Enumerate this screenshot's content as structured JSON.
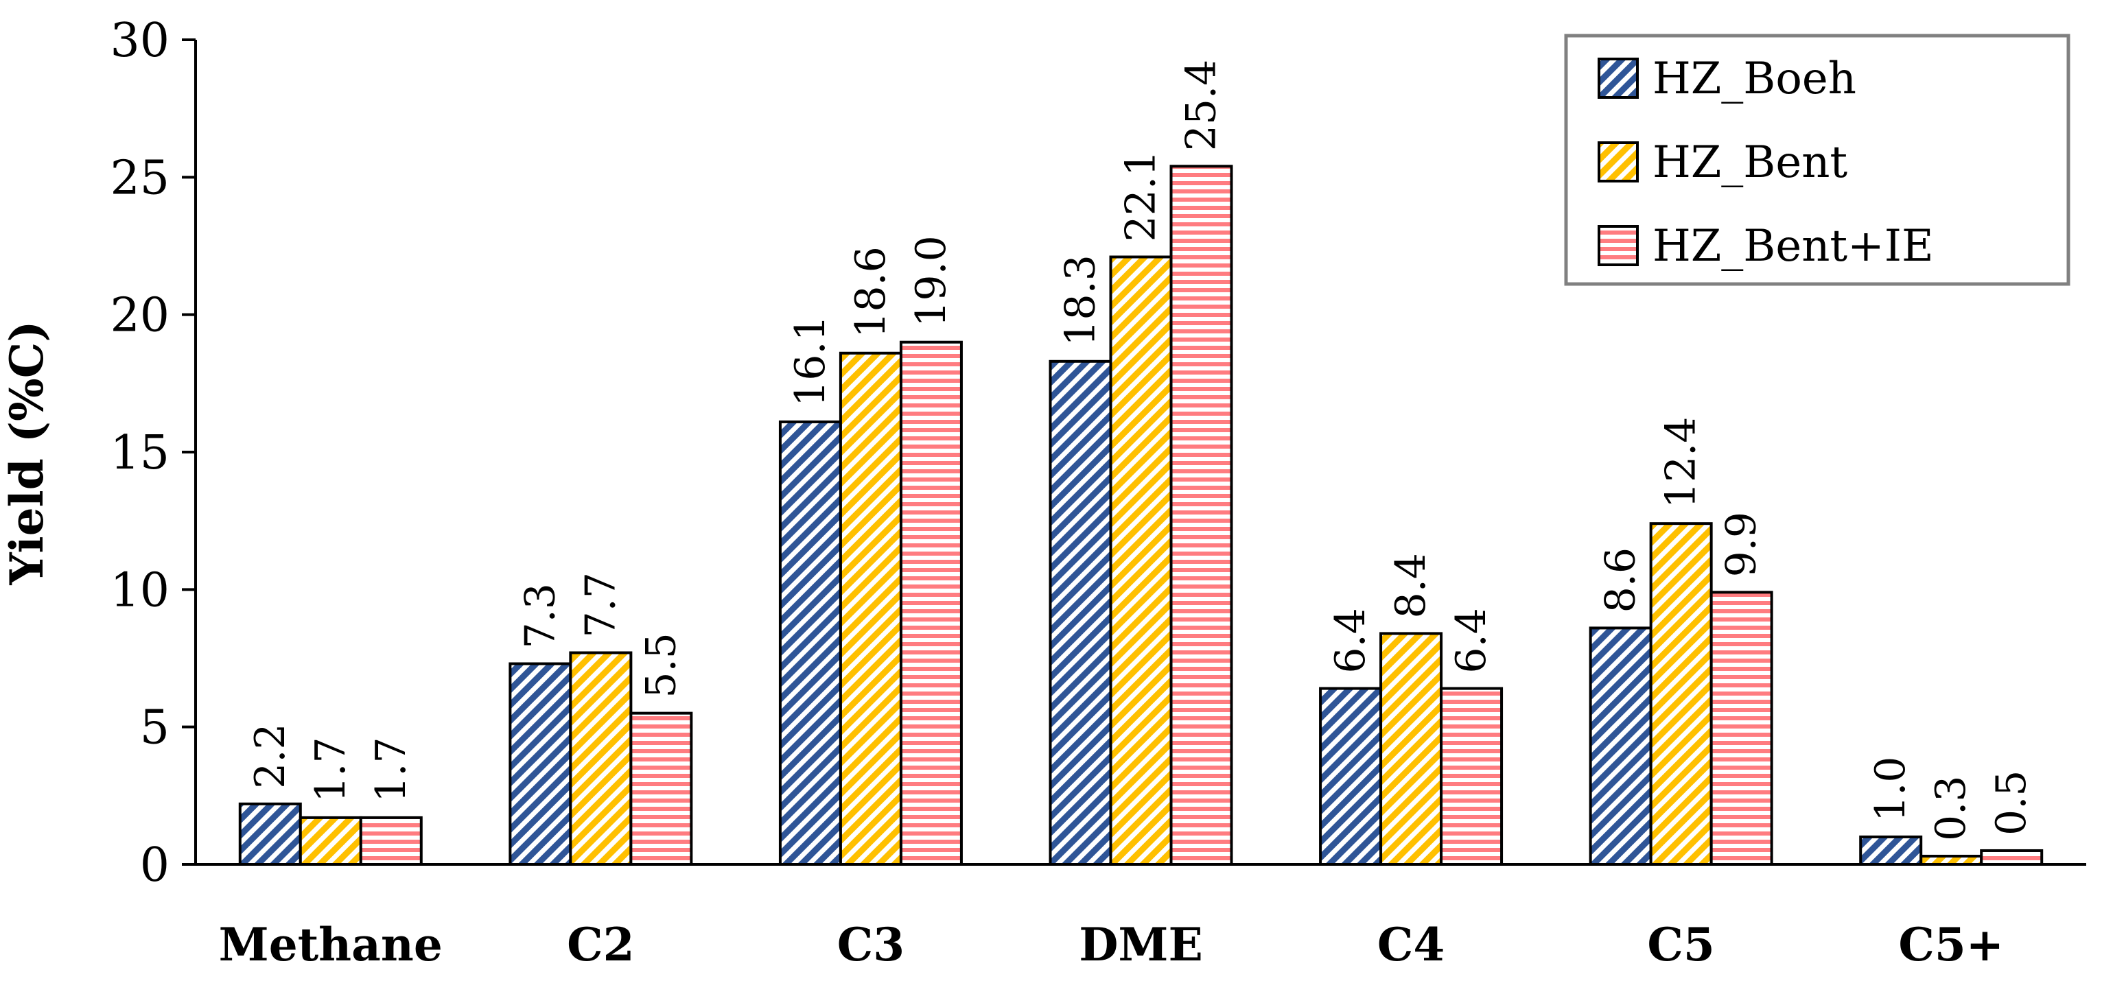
{
  "chart_data": {
    "type": "bar",
    "title": "",
    "xlabel": "",
    "ylabel": "Yield (%C)",
    "ylim": [
      0,
      30
    ],
    "yticks": [
      0,
      5,
      10,
      15,
      20,
      25,
      30
    ],
    "grid": false,
    "legend_position": "top-right",
    "categories": [
      "Methane",
      "C2",
      "C3",
      "DME",
      "C4",
      "C5",
      "C5+"
    ],
    "series": [
      {
        "name": "HZ_Boeh",
        "values": [
          2.2,
          7.3,
          16.1,
          18.3,
          6.4,
          8.6,
          1.0
        ],
        "labels": [
          "2.2",
          "7.3",
          "16.1",
          "18.3",
          "6.4",
          "8.6",
          "1.0"
        ],
        "color": "#2F5597",
        "pattern": "diagonal-hatch"
      },
      {
        "name": "HZ_Bent",
        "values": [
          1.7,
          7.7,
          18.6,
          22.1,
          8.4,
          12.4,
          0.3
        ],
        "labels": [
          "1.7",
          "7.7",
          "18.6",
          "22.1",
          "8.4",
          "12.4",
          "0.3"
        ],
        "color": "#FFC000",
        "pattern": "diagonal-hatch"
      },
      {
        "name": "HZ_Bent+IE",
        "values": [
          1.7,
          5.5,
          19.0,
          25.4,
          6.4,
          9.9,
          0.5
        ],
        "labels": [
          "1.7",
          "5.5",
          "19.0",
          "25.4",
          "6.4",
          "9.9",
          "0.5"
        ],
        "color": "#FF7C80",
        "pattern": "horizontal-lines"
      }
    ]
  }
}
